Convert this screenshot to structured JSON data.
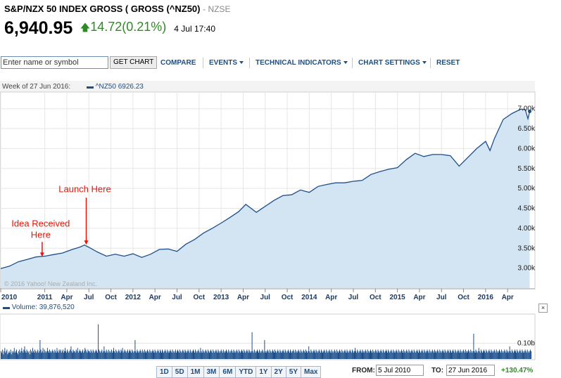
{
  "header": {
    "title": "S&P/NZX 50 INDEX GROSS ( GROSS (^NZ50)",
    "exchange": "- NZSE",
    "price": "6,940.95",
    "change": "14.72",
    "change_pct": "(0.21%)",
    "time": "4 Jul 17:40",
    "change_color": "#2e8b24"
  },
  "toolbar": {
    "search_placeholder": "Enter name or symbol",
    "get_chart": "GET CHART",
    "compare": "COMPARE",
    "events": "EVENTS",
    "technical": "TECHNICAL INDICATORS",
    "settings": "CHART SETTINGS",
    "reset": "RESET"
  },
  "week": {
    "label": "Week of 27 Jun 2016:",
    "series": "^NZ50 6926.23"
  },
  "volume": {
    "label": "Volume: 39,876,520"
  },
  "close_label": "×",
  "ranges": [
    "1D",
    "5D",
    "1M",
    "3M",
    "6M",
    "YTD",
    "1Y",
    "2Y",
    "5Y",
    "Max"
  ],
  "date_range": {
    "from_label": "FROM:",
    "from": "5 Jul 2010",
    "to_label": "TO:",
    "to": "27 Jun 2016",
    "pct": "+130.47%"
  },
  "chart_data": {
    "type": "area",
    "title": "",
    "copyright": "© 2016 Yahoo! New Zealand Inc.",
    "line_color": "#1c4f8a",
    "fill_color": "#d3e5f2",
    "ylim": [
      2.5,
      7.4
    ],
    "y_ticks": [
      3.0,
      3.5,
      4.0,
      4.5,
      5.0,
      5.5,
      6.0,
      6.5,
      7.0
    ],
    "y_tick_labels": [
      "3.00k",
      "3.50k",
      "4.00k",
      "4.50k",
      "5.00k",
      "5.50k",
      "6.00k",
      "6.50k",
      "7.00k"
    ],
    "xlim": [
      2010.5,
      2016.52
    ],
    "x_ticks": [
      {
        "t": 2010.5,
        "label": "2010"
      },
      {
        "t": 2011.0,
        "label": "2011"
      },
      {
        "t": 2011.25,
        "label": "Apr"
      },
      {
        "t": 2011.5,
        "label": "Jul"
      },
      {
        "t": 2011.75,
        "label": "Oct"
      },
      {
        "t": 2012.0,
        "label": "2012"
      },
      {
        "t": 2012.25,
        "label": "Apr"
      },
      {
        "t": 2012.5,
        "label": "Jul"
      },
      {
        "t": 2012.75,
        "label": "Oct"
      },
      {
        "t": 2013.0,
        "label": "2013"
      },
      {
        "t": 2013.25,
        "label": "Apr"
      },
      {
        "t": 2013.5,
        "label": "Jul"
      },
      {
        "t": 2013.75,
        "label": "Oct"
      },
      {
        "t": 2014.0,
        "label": "2014"
      },
      {
        "t": 2014.25,
        "label": "Apr"
      },
      {
        "t": 2014.5,
        "label": "Jul"
      },
      {
        "t": 2014.75,
        "label": "Oct"
      },
      {
        "t": 2015.0,
        "label": "2015"
      },
      {
        "t": 2015.25,
        "label": "Apr"
      },
      {
        "t": 2015.5,
        "label": "Jul"
      },
      {
        "t": 2015.75,
        "label": "Oct"
      },
      {
        "t": 2016.0,
        "label": "2016"
      },
      {
        "t": 2016.25,
        "label": "Apr"
      }
    ],
    "series": [
      {
        "points": [
          [
            2010.5,
            2.99
          ],
          [
            2010.6,
            3.05
          ],
          [
            2010.7,
            3.16
          ],
          [
            2010.8,
            3.22
          ],
          [
            2010.9,
            3.28
          ],
          [
            2011.0,
            3.3
          ],
          [
            2011.1,
            3.34
          ],
          [
            2011.2,
            3.38
          ],
          [
            2011.3,
            3.46
          ],
          [
            2011.4,
            3.53
          ],
          [
            2011.45,
            3.58
          ],
          [
            2011.52,
            3.5
          ],
          [
            2011.6,
            3.4
          ],
          [
            2011.7,
            3.3
          ],
          [
            2011.8,
            3.35
          ],
          [
            2011.9,
            3.3
          ],
          [
            2012.0,
            3.36
          ],
          [
            2012.1,
            3.27
          ],
          [
            2012.2,
            3.35
          ],
          [
            2012.3,
            3.47
          ],
          [
            2012.4,
            3.48
          ],
          [
            2012.5,
            3.42
          ],
          [
            2012.6,
            3.6
          ],
          [
            2012.7,
            3.72
          ],
          [
            2012.8,
            3.88
          ],
          [
            2012.9,
            4.0
          ],
          [
            2013.0,
            4.13
          ],
          [
            2013.1,
            4.27
          ],
          [
            2013.2,
            4.42
          ],
          [
            2013.28,
            4.6
          ],
          [
            2013.4,
            4.4
          ],
          [
            2013.5,
            4.55
          ],
          [
            2013.6,
            4.7
          ],
          [
            2013.7,
            4.82
          ],
          [
            2013.8,
            4.84
          ],
          [
            2013.9,
            4.96
          ],
          [
            2014.0,
            4.9
          ],
          [
            2014.1,
            5.05
          ],
          [
            2014.2,
            5.1
          ],
          [
            2014.3,
            5.14
          ],
          [
            2014.4,
            5.14
          ],
          [
            2014.5,
            5.18
          ],
          [
            2014.6,
            5.2
          ],
          [
            2014.7,
            5.35
          ],
          [
            2014.8,
            5.42
          ],
          [
            2014.9,
            5.48
          ],
          [
            2015.0,
            5.52
          ],
          [
            2015.1,
            5.72
          ],
          [
            2015.2,
            5.88
          ],
          [
            2015.3,
            5.8
          ],
          [
            2015.4,
            5.85
          ],
          [
            2015.5,
            5.85
          ],
          [
            2015.6,
            5.82
          ],
          [
            2015.7,
            5.56
          ],
          [
            2015.8,
            5.78
          ],
          [
            2015.9,
            6.0
          ],
          [
            2016.0,
            6.18
          ],
          [
            2016.05,
            5.95
          ],
          [
            2016.1,
            6.25
          ],
          [
            2016.2,
            6.73
          ],
          [
            2016.3,
            6.88
          ],
          [
            2016.4,
            6.99
          ],
          [
            2016.45,
            6.98
          ],
          [
            2016.48,
            6.75
          ],
          [
            2016.5,
            6.93
          ]
        ]
      }
    ],
    "annotations": [
      {
        "text": "Idea Received",
        "text2": "Here",
        "t": 2010.97,
        "v": 3.27
      },
      {
        "text": "Launch Here",
        "t": 2011.47,
        "v": 3.57
      }
    ],
    "volume": {
      "y_tick_label": "0.10b",
      "y_tick": 0.1,
      "ylim": [
        0,
        0.28
      ],
      "values": [
        0.05,
        0.04,
        0.06,
        0.03,
        0.05,
        0.07,
        0.04,
        0.05,
        0.06,
        0.03,
        0.04,
        0.05,
        0.04,
        0.06,
        0.03,
        0.05,
        0.04,
        0.05,
        0.07,
        0.04,
        0.05,
        0.06,
        0.04,
        0.03,
        0.05,
        0.06,
        0.04,
        0.05,
        0.07,
        0.05,
        0.04,
        0.06,
        0.08,
        0.05,
        0.04,
        0.06,
        0.05,
        0.04,
        0.05,
        0.03,
        0.06,
        0.05,
        0.04,
        0.07,
        0.05,
        0.04,
        0.06,
        0.05,
        0.04,
        0.05,
        0.06,
        0.04,
        0.05,
        0.12,
        0.06,
        0.04,
        0.05,
        0.07,
        0.04,
        0.06,
        0.05,
        0.04,
        0.05,
        0.07,
        0.05,
        0.04,
        0.06,
        0.05,
        0.04,
        0.05,
        0.06,
        0.05,
        0.04,
        0.06,
        0.05,
        0.04,
        0.07,
        0.05,
        0.04,
        0.06,
        0.05,
        0.06,
        0.04,
        0.05,
        0.06,
        0.04,
        0.05,
        0.07,
        0.05,
        0.04,
        0.06,
        0.05,
        0.04,
        0.05,
        0.06,
        0.08,
        0.05,
        0.04,
        0.06,
        0.05,
        0.05,
        0.04,
        0.06,
        0.05,
        0.07,
        0.04,
        0.05,
        0.06,
        0.05,
        0.04,
        0.05,
        0.06,
        0.04,
        0.05,
        0.07,
        0.06,
        0.05,
        0.04,
        0.06,
        0.05,
        0.05,
        0.04,
        0.06,
        0.05,
        0.04,
        0.06,
        0.05,
        0.04,
        0.05,
        0.06,
        0.05,
        0.04,
        0.22,
        0.06,
        0.05,
        0.04,
        0.05,
        0.06,
        0.04,
        0.05,
        0.08,
        0.05,
        0.04,
        0.06,
        0.05,
        0.04,
        0.06,
        0.05,
        0.04,
        0.05,
        0.06,
        0.04,
        0.05,
        0.07,
        0.05,
        0.04,
        0.06,
        0.05,
        0.04,
        0.05,
        0.06,
        0.05,
        0.04,
        0.06,
        0.05,
        0.07,
        0.04,
        0.05,
        0.06,
        0.05,
        0.04,
        0.05,
        0.06,
        0.04,
        0.05,
        0.06,
        0.05,
        0.04,
        0.06,
        0.05,
        0.04,
        0.05,
        0.12,
        0.05,
        0.04,
        0.06,
        0.05,
        0.04,
        0.05,
        0.06,
        0.05,
        0.04,
        0.06,
        0.05,
        0.04,
        0.06,
        0.05,
        0.04,
        0.05,
        0.06,
        0.05,
        0.04,
        0.06,
        0.05,
        0.04,
        0.05,
        0.06,
        0.05,
        0.04,
        0.06,
        0.05,
        0.04,
        0.05,
        0.06,
        0.05,
        0.04,
        0.06,
        0.05,
        0.04,
        0.06,
        0.05,
        0.04,
        0.05,
        0.06,
        0.05,
        0.04,
        0.06,
        0.05,
        0.04,
        0.05,
        0.06,
        0.05,
        0.04,
        0.06,
        0.05,
        0.04,
        0.05,
        0.06,
        0.04,
        0.05,
        0.06,
        0.05,
        0.04,
        0.06,
        0.05,
        0.04,
        0.05,
        0.06,
        0.05,
        0.04,
        0.06,
        0.05,
        0.04,
        0.05,
        0.06,
        0.05,
        0.04,
        0.06,
        0.05,
        0.04,
        0.05,
        0.06,
        0.05,
        0.04,
        0.06,
        0.05,
        0.04,
        0.05,
        0.06,
        0.05,
        0.04,
        0.07,
        0.05,
        0.04,
        0.06,
        0.05,
        0.04,
        0.05,
        0.06,
        0.05,
        0.04,
        0.06,
        0.05,
        0.04,
        0.05,
        0.06,
        0.05,
        0.04,
        0.06,
        0.05,
        0.04,
        0.05,
        0.06,
        0.05,
        0.04,
        0.06,
        0.05,
        0.04,
        0.05,
        0.06,
        0.05,
        0.04,
        0.06,
        0.05,
        0.04,
        0.05,
        0.06,
        0.05,
        0.04,
        0.06,
        0.05,
        0.04,
        0.05,
        0.06,
        0.05,
        0.04,
        0.06,
        0.05,
        0.04,
        0.05,
        0.06,
        0.05,
        0.04,
        0.06,
        0.05,
        0.04,
        0.05,
        0.06,
        0.05,
        0.04,
        0.06,
        0.05,
        0.04,
        0.05,
        0.06,
        0.05,
        0.04,
        0.06,
        0.05,
        0.04,
        0.05,
        0.17,
        0.05,
        0.04,
        0.06,
        0.05,
        0.04,
        0.05,
        0.06,
        0.05,
        0.04,
        0.06,
        0.05,
        0.04,
        0.05,
        0.06,
        0.05,
        0.04,
        0.12,
        0.05,
        0.04,
        0.05,
        0.06,
        0.05,
        0.04,
        0.06,
        0.05,
        0.04,
        0.05,
        0.06,
        0.05,
        0.04,
        0.06,
        0.05,
        0.04,
        0.05,
        0.06,
        0.05,
        0.04,
        0.06,
        0.05,
        0.04,
        0.05,
        0.06,
        0.05,
        0.04,
        0.06,
        0.05,
        0.04,
        0.05,
        0.06,
        0.05,
        0.04,
        0.06,
        0.05,
        0.04,
        0.05,
        0.06,
        0.05,
        0.04,
        0.06,
        0.05,
        0.04,
        0.05,
        0.06,
        0.05,
        0.04,
        0.06,
        0.05,
        0.04,
        0.05,
        0.06,
        0.05,
        0.04,
        0.06,
        0.05,
        0.04,
        0.05,
        0.08,
        0.05,
        0.04,
        0.06,
        0.05,
        0.04,
        0.05,
        0.06,
        0.05,
        0.04,
        0.06,
        0.05,
        0.04,
        0.05,
        0.06,
        0.05,
        0.04,
        0.06,
        0.05,
        0.04,
        0.05,
        0.06,
        0.05,
        0.04,
        0.06,
        0.05,
        0.04,
        0.05,
        0.06,
        0.05,
        0.04,
        0.06,
        0.05,
        0.04,
        0.05,
        0.06,
        0.05,
        0.04,
        0.06,
        0.05,
        0.04,
        0.05,
        0.06,
        0.05,
        0.04,
        0.06,
        0.05,
        0.04,
        0.05,
        0.06,
        0.05,
        0.04,
        0.06,
        0.05,
        0.04,
        0.05,
        0.06,
        0.05,
        0.04,
        0.06,
        0.05,
        0.04,
        0.05,
        0.07,
        0.05,
        0.04,
        0.06,
        0.05,
        0.04,
        0.05,
        0.06,
        0.05,
        0.04,
        0.06,
        0.05,
        0.04,
        0.05,
        0.06,
        0.05,
        0.04,
        0.06,
        0.05,
        0.04,
        0.05,
        0.06,
        0.05,
        0.04,
        0.06,
        0.05,
        0.04,
        0.05,
        0.06,
        0.05,
        0.04,
        0.06,
        0.05,
        0.04,
        0.05,
        0.06,
        0.05,
        0.04,
        0.06,
        0.05,
        0.04,
        0.05,
        0.06,
        0.05,
        0.04,
        0.06,
        0.05,
        0.04,
        0.05,
        0.06,
        0.05,
        0.04,
        0.06,
        0.05,
        0.04,
        0.05,
        0.06,
        0.05,
        0.04,
        0.06,
        0.05,
        0.04,
        0.05,
        0.06,
        0.05,
        0.04,
        0.06,
        0.05,
        0.04,
        0.05,
        0.06,
        0.05,
        0.04,
        0.06,
        0.05,
        0.04,
        0.05,
        0.06,
        0.05,
        0.04,
        0.06,
        0.05,
        0.04,
        0.05,
        0.06,
        0.05,
        0.04,
        0.06,
        0.05,
        0.04,
        0.05,
        0.06,
        0.05,
        0.04,
        0.06,
        0.05,
        0.04,
        0.05,
        0.06,
        0.05,
        0.04,
        0.06,
        0.05,
        0.04,
        0.05,
        0.06,
        0.05,
        0.04,
        0.06,
        0.05,
        0.04,
        0.05,
        0.06,
        0.05,
        0.04,
        0.06,
        0.05,
        0.04,
        0.05,
        0.06,
        0.05,
        0.04,
        0.06,
        0.05,
        0.04,
        0.05,
        0.06,
        0.05,
        0.04,
        0.06,
        0.05,
        0.04,
        0.05,
        0.06,
        0.05,
        0.04,
        0.06,
        0.05,
        0.04,
        0.05,
        0.06,
        0.05,
        0.04,
        0.06,
        0.05,
        0.04,
        0.05,
        0.06,
        0.05,
        0.04,
        0.06,
        0.05,
        0.04,
        0.05,
        0.06,
        0.05,
        0.04,
        0.06,
        0.05,
        0.04,
        0.05,
        0.16,
        0.05,
        0.04,
        0.06,
        0.05,
        0.04,
        0.05,
        0.07,
        0.05,
        0.04,
        0.06,
        0.05,
        0.04,
        0.05,
        0.06,
        0.05,
        0.04,
        0.06,
        0.05,
        0.04,
        0.05,
        0.06,
        0.05,
        0.04,
        0.06,
        0.05,
        0.04,
        0.05,
        0.06,
        0.05,
        0.04,
        0.06,
        0.05,
        0.04,
        0.05,
        0.06,
        0.05,
        0.04,
        0.06,
        0.05,
        0.04,
        0.05,
        0.06,
        0.05,
        0.04,
        0.06,
        0.05,
        0.04,
        0.05,
        0.08,
        0.05,
        0.04,
        0.06,
        0.05,
        0.04,
        0.05,
        0.06,
        0.05,
        0.04,
        0.06,
        0.05,
        0.04,
        0.05,
        0.06,
        0.05,
        0.04,
        0.06,
        0.05,
        0.04,
        0.05,
        0.06,
        0.05,
        0.04,
        0.06,
        0.05,
        0.04,
        0.05,
        0.06,
        0.05
      ]
    }
  }
}
